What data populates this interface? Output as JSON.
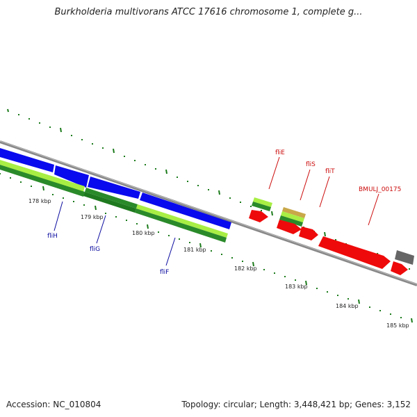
{
  "title": "Burkholderia multivorans ATCC 17616 chromosome 1, complete g...",
  "footer": {
    "accession": "Accession: NC_010804",
    "topology": "Topology: circular; Length: 3,448,421 bp; Genes: 3,152"
  },
  "colors": {
    "forward_gene": "#0a0aee",
    "reverse_gene": "#ee0a0a",
    "gene_label_forward": "#0a0aa0",
    "gene_label_reverse": "#cc0a0a",
    "tick": "#1a7a1a",
    "backbone": "#888888",
    "highlight_light": "#a8ee44",
    "highlight_dark": "#2a8a2a",
    "other_gene": "#666666"
  },
  "ticks": [
    {
      "label": "178 kbp"
    },
    {
      "label": "179 kbp"
    },
    {
      "label": "180 kbp"
    },
    {
      "label": "181 kbp"
    },
    {
      "label": "182 kbp"
    },
    {
      "label": "183 kbp"
    },
    {
      "label": "184 kbp"
    },
    {
      "label": "185 kbp"
    }
  ],
  "genes_forward": [
    {
      "label": "fliH"
    },
    {
      "label": "fliG"
    },
    {
      "label": "fliF"
    }
  ],
  "genes_reverse": [
    {
      "label": "fliE"
    },
    {
      "label": "fliS"
    },
    {
      "label": "fliT"
    },
    {
      "label": "BMULJ_00175"
    }
  ]
}
